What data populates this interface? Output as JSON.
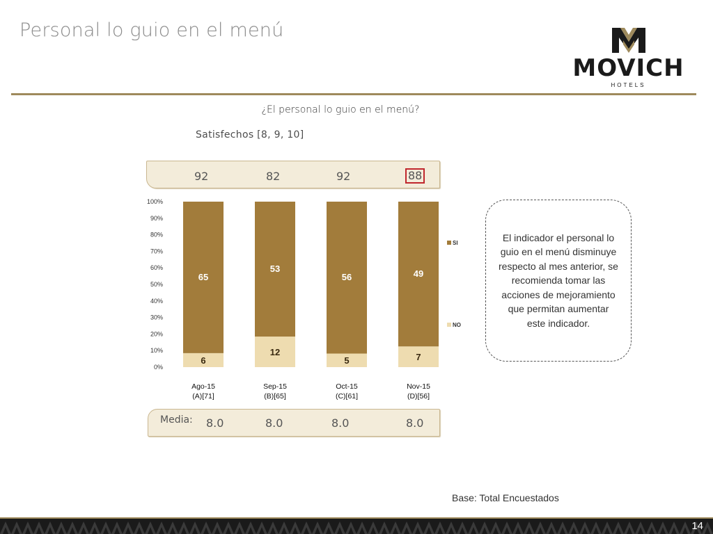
{
  "page": {
    "title": "Personal lo guio en el menú",
    "page_number": "14",
    "base": "Base: Total Encuestados"
  },
  "logo": {
    "name": "MOVICH",
    "sub": "HOTELS",
    "icon": "movich-logo-icon",
    "color": "#9e8a5c"
  },
  "question": "¿El personal lo guio en el menú?",
  "satisfied_label": "Satisfechos [8, 9, 10]",
  "satisfied_values": [
    "92",
    "82",
    "92",
    "88"
  ],
  "media": {
    "label": "Media:",
    "values": [
      "8.0",
      "8.0",
      "8.0",
      "8.0"
    ]
  },
  "note": "El indicador el personal lo guio en el menú disminuye respecto al mes anterior, se recomienda tomar las acciones de mejoramiento que permitan aumentar este indicador.",
  "chart_data": {
    "type": "bar",
    "stacked": true,
    "percent_stacked": true,
    "categories": [
      "Ago-15 (A)[71]",
      "Sep-15 (B)[65]",
      "Oct-15 (C)[61]",
      "Nov-15 (D)[56]"
    ],
    "category_lines": [
      [
        "Ago-15",
        "(A)[71]"
      ],
      [
        "Sep-15",
        "(B)[65]"
      ],
      [
        "Oct-15",
        "(C)[61]"
      ],
      [
        "Nov-15",
        "(D)[56]"
      ]
    ],
    "series": [
      {
        "name": "NO",
        "values": [
          6,
          12,
          5,
          7
        ],
        "color": "#eedcb0"
      },
      {
        "name": "SI",
        "values": [
          65,
          53,
          56,
          49
        ],
        "color": "#a27c3b"
      }
    ],
    "y_ticks": [
      "0%",
      "10%",
      "20%",
      "30%",
      "40%",
      "50%",
      "60%",
      "70%",
      "80%",
      "90%",
      "100%"
    ],
    "ylim": [
      0,
      100
    ],
    "legend_position": "right",
    "highlighted_category": "Nov-15"
  },
  "colors": {
    "accent": "#9e8a5c",
    "highlight": "#c0272d",
    "band": "#f3ecda"
  }
}
